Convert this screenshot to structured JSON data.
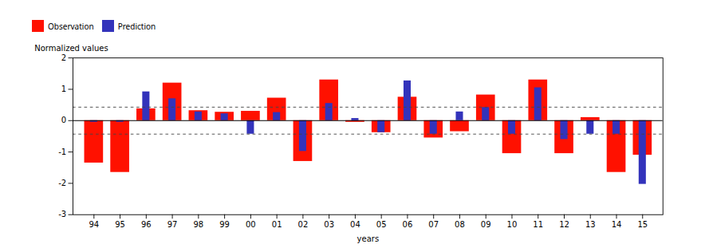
{
  "chart_data": {
    "type": "bar",
    "categories": [
      "94",
      "95",
      "96",
      "97",
      "98",
      "99",
      "00",
      "01",
      "02",
      "03",
      "04",
      "05",
      "06",
      "07",
      "08",
      "09",
      "10",
      "11",
      "12",
      "13",
      "14",
      "15"
    ],
    "series": [
      {
        "name": "Observation",
        "color": "#FF1100",
        "values": [
          -1.35,
          -1.65,
          0.38,
          1.2,
          0.32,
          0.27,
          0.3,
          0.72,
          -1.3,
          1.3,
          -0.05,
          -0.38,
          0.75,
          -0.55,
          -0.35,
          0.82,
          -1.05,
          1.3,
          -1.05,
          0.1,
          -1.65,
          -1.1
        ]
      },
      {
        "name": "Prediction",
        "color": "#3333BB",
        "values": [
          -0.05,
          -0.05,
          0.92,
          0.7,
          0.28,
          0.22,
          -0.43,
          0.26,
          -0.98,
          0.55,
          0.07,
          -0.38,
          1.27,
          -0.43,
          0.28,
          0.42,
          -0.43,
          1.05,
          -0.6,
          -0.43,
          -0.43,
          -2.03
        ]
      }
    ],
    "hlines": [
      {
        "value": 0,
        "line_style": "solid"
      },
      {
        "value": 0.43,
        "line_style": "dashed"
      },
      {
        "value": -0.43,
        "line_style": "dashed"
      }
    ],
    "xlabel": "years",
    "ylabel": "Normalized values",
    "ylim": [
      -3,
      2
    ],
    "yticks": [
      -3,
      -2,
      -1,
      0,
      1,
      2
    ],
    "legend": "upper left"
  }
}
